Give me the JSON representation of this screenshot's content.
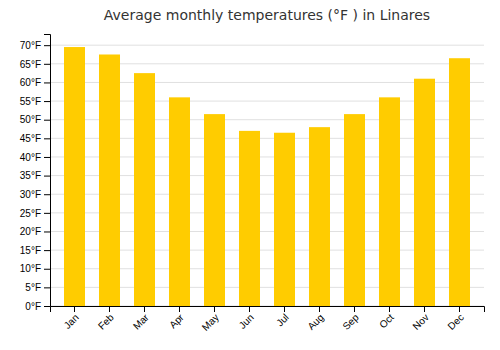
{
  "chart_data": {
    "type": "bar",
    "title": "Average monthly temperatures (°F ) in Linares",
    "categories": [
      "Jan",
      "Feb",
      "Mar",
      "Apr",
      "May",
      "Jun",
      "Jul",
      "Aug",
      "Sep",
      "Oct",
      "Nov",
      "Dec"
    ],
    "values": [
      69.5,
      67.5,
      62.5,
      56,
      51.5,
      47,
      46.5,
      48,
      51.5,
      56,
      61,
      66.5
    ],
    "color": "#FFCC00",
    "ylim": [
      0,
      73
    ],
    "yticks": [
      {
        "value": 0,
        "label": "0°F"
      },
      {
        "value": 5,
        "label": "5°F"
      },
      {
        "value": 10,
        "label": "10°F"
      },
      {
        "value": 15,
        "label": "15°F"
      },
      {
        "value": 20,
        "label": "20°F"
      },
      {
        "value": 25,
        "label": "25°F"
      },
      {
        "value": 30,
        "label": "30°F"
      },
      {
        "value": 35,
        "label": "35°F"
      },
      {
        "value": 40,
        "label": "40°F"
      },
      {
        "value": 45,
        "label": "45°F"
      },
      {
        "value": 50,
        "label": "50°F"
      },
      {
        "value": 55,
        "label": "55°F"
      },
      {
        "value": 60,
        "label": "60°F"
      },
      {
        "value": 65,
        "label": "65°F"
      },
      {
        "value": 70,
        "label": "70°F"
      }
    ],
    "grid": true
  }
}
